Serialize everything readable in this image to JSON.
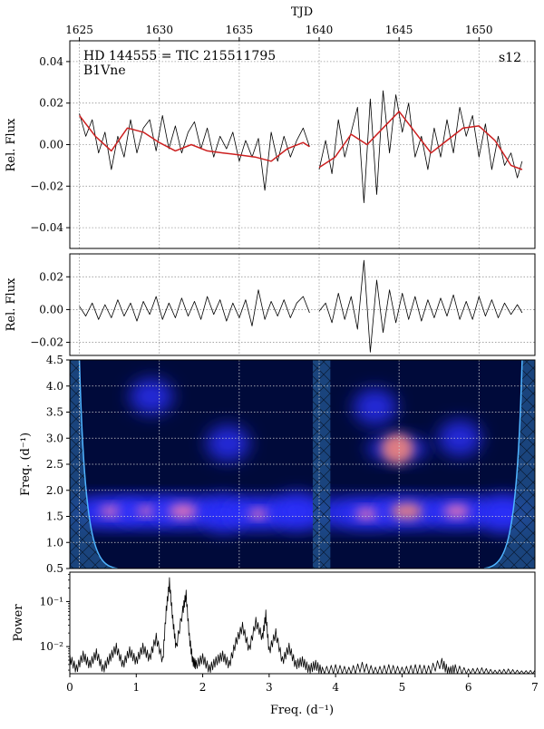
{
  "chart_data": [
    {
      "panel": "light-curve",
      "type": "line",
      "top_axis_label": "TJD",
      "top_ticks": [
        1625,
        1630,
        1635,
        1640,
        1645,
        1650
      ],
      "top_tick_labels": [
        "1625",
        "1630",
        "1635",
        "1640",
        "1645",
        "1650"
      ],
      "xlim": [
        1624.4,
        1653.5
      ],
      "ylabel": "Rel. Flux",
      "ylim": [
        -0.05,
        0.05
      ],
      "yticks": [
        -0.04,
        -0.02,
        0.0,
        0.02,
        0.04
      ],
      "ytick_labels": [
        "−0.04",
        "−0.02",
        "0.00",
        "0.02",
        "0.04"
      ],
      "title_line1": "HD 144555 = TIC 215511795",
      "title_line2": "B1Vne",
      "sector_label": "s12",
      "grid": true,
      "series": [
        {
          "role": "raw",
          "color": "#000000",
          "x": [
            1625.0,
            1625.4,
            1625.8,
            1626.2,
            1626.6,
            1627.0,
            1627.4,
            1627.8,
            1628.2,
            1628.6,
            1629.0,
            1629.4,
            1629.8,
            1630.2,
            1630.6,
            1631.0,
            1631.4,
            1631.8,
            1632.2,
            1632.6,
            1633.0,
            1633.4,
            1633.8,
            1634.2,
            1634.6,
            1635.0,
            1635.4,
            1635.8,
            1636.2,
            1636.6,
            1637.0,
            1637.4,
            1637.8,
            1638.2,
            1638.6,
            1639.0,
            1639.4,
            1640.0,
            1640.4,
            1640.8,
            1641.2,
            1641.6,
            1642.0,
            1642.4,
            1642.8,
            1643.2,
            1643.6,
            1644.0,
            1644.4,
            1644.8,
            1645.2,
            1645.6,
            1646.0,
            1646.4,
            1646.8,
            1647.2,
            1647.6,
            1648.0,
            1648.4,
            1648.8,
            1649.2,
            1649.6,
            1650.0,
            1650.4,
            1650.8,
            1651.2,
            1651.6,
            1652.0,
            1652.4,
            1652.7
          ],
          "y": [
            0.015,
            0.004,
            0.012,
            -0.004,
            0.006,
            -0.012,
            0.004,
            -0.006,
            0.012,
            -0.004,
            0.008,
            0.012,
            -0.003,
            0.014,
            -0.002,
            0.009,
            -0.004,
            0.006,
            0.011,
            -0.002,
            0.008,
            -0.006,
            0.004,
            -0.002,
            0.006,
            -0.008,
            0.002,
            -0.006,
            0.003,
            -0.022,
            0.006,
            -0.008,
            0.004,
            -0.006,
            0.002,
            0.008,
            -0.001,
            -0.012,
            0.002,
            -0.014,
            0.012,
            -0.006,
            0.006,
            0.018,
            -0.028,
            0.022,
            -0.024,
            0.026,
            -0.004,
            0.024,
            0.006,
            0.02,
            -0.006,
            0.004,
            -0.012,
            0.008,
            -0.006,
            0.012,
            -0.004,
            0.018,
            0.004,
            0.014,
            -0.006,
            0.01,
            -0.012,
            0.004,
            -0.01,
            -0.004,
            -0.016,
            -0.008
          ]
        },
        {
          "role": "smoothed",
          "color": "#cc1f1f",
          "x": [
            1625.0,
            1626.0,
            1627.0,
            1628.0,
            1629.0,
            1630.0,
            1631.0,
            1632.0,
            1633.0,
            1634.0,
            1635.0,
            1636.0,
            1637.0,
            1638.0,
            1639.0,
            1639.4,
            1640.0,
            1641.0,
            1642.0,
            1643.0,
            1644.0,
            1645.0,
            1646.0,
            1647.0,
            1648.0,
            1649.0,
            1650.0,
            1651.0,
            1652.0,
            1652.7
          ],
          "y": [
            0.014,
            0.004,
            -0.003,
            0.008,
            0.006,
            0.001,
            -0.003,
            0.0,
            -0.003,
            -0.004,
            -0.005,
            -0.006,
            -0.008,
            -0.002,
            0.001,
            -0.001,
            -0.011,
            -0.006,
            0.005,
            0.0,
            0.008,
            0.016,
            0.006,
            -0.004,
            0.002,
            0.008,
            0.009,
            0.002,
            -0.01,
            -0.012
          ]
        }
      ]
    },
    {
      "panel": "residual",
      "type": "line",
      "ylabel": "Rel. Flux",
      "xlim": [
        1624.4,
        1653.5
      ],
      "ylim": [
        -0.028,
        0.034
      ],
      "yticks": [
        -0.02,
        0.0,
        0.02
      ],
      "ytick_labels": [
        "−0.02",
        "0.00",
        "0.02"
      ],
      "grid": true,
      "series": [
        {
          "role": "residual",
          "color": "#000000",
          "x": [
            1625.0,
            1625.4,
            1625.8,
            1626.2,
            1626.6,
            1627.0,
            1627.4,
            1627.8,
            1628.2,
            1628.6,
            1629.0,
            1629.4,
            1629.8,
            1630.2,
            1630.6,
            1631.0,
            1631.4,
            1631.8,
            1632.2,
            1632.6,
            1633.0,
            1633.4,
            1633.8,
            1634.2,
            1634.6,
            1635.0,
            1635.4,
            1635.8,
            1636.2,
            1636.6,
            1637.0,
            1637.4,
            1637.8,
            1638.2,
            1638.6,
            1639.0,
            1639.4,
            1640.0,
            1640.4,
            1640.8,
            1641.2,
            1641.6,
            1642.0,
            1642.4,
            1642.8,
            1643.2,
            1643.6,
            1644.0,
            1644.4,
            1644.8,
            1645.2,
            1645.6,
            1646.0,
            1646.4,
            1646.8,
            1647.2,
            1647.6,
            1648.0,
            1648.4,
            1648.8,
            1649.2,
            1649.6,
            1650.0,
            1650.4,
            1650.8,
            1651.2,
            1651.6,
            1652.0,
            1652.4,
            1652.7
          ],
          "y": [
            0.002,
            -0.004,
            0.004,
            -0.006,
            0.003,
            -0.005,
            0.006,
            -0.004,
            0.004,
            -0.007,
            0.005,
            -0.003,
            0.008,
            -0.006,
            0.004,
            -0.005,
            0.007,
            -0.004,
            0.005,
            -0.006,
            0.008,
            -0.003,
            0.006,
            -0.007,
            0.004,
            -0.005,
            0.006,
            -0.01,
            0.012,
            -0.006,
            0.005,
            -0.004,
            0.006,
            -0.005,
            0.004,
            0.008,
            -0.002,
            -0.001,
            0.004,
            -0.008,
            0.01,
            -0.006,
            0.008,
            -0.012,
            0.03,
            -0.026,
            0.018,
            -0.014,
            0.012,
            -0.008,
            0.01,
            -0.006,
            0.008,
            -0.007,
            0.006,
            -0.005,
            0.007,
            -0.004,
            0.009,
            -0.006,
            0.005,
            -0.006,
            0.008,
            -0.004,
            0.006,
            -0.005,
            0.004,
            -0.003,
            0.003,
            -0.002
          ]
        }
      ]
    },
    {
      "panel": "wavelet",
      "type": "heatmap",
      "ylabel": "Freq. (d⁻¹)",
      "xlim": [
        1624.4,
        1653.5
      ],
      "ylim": [
        0.5,
        4.5
      ],
      "yticks": [
        0.5,
        1.0,
        1.5,
        2.0,
        2.5,
        3.0,
        3.5,
        4.0,
        4.5
      ],
      "ytick_labels": [
        "0.5",
        "1.0",
        "1.5",
        "2.0",
        "2.5",
        "3.0",
        "3.5",
        "4.0",
        "4.5"
      ],
      "grid": true,
      "gap": [
        1639.6,
        1640.7
      ],
      "colors": {
        "background": "#000a3a",
        "band": "#2a2fff",
        "hot": "#ff7fb0",
        "peak": "#ff8c78"
      },
      "power_spots": [
        {
          "t": 1627.0,
          "f": 1.6,
          "power": 0.7
        },
        {
          "t": 1629.2,
          "f": 1.6,
          "power": 0.6
        },
        {
          "t": 1631.5,
          "f": 1.6,
          "power": 0.9
        },
        {
          "t": 1634.0,
          "f": 1.55,
          "power": 0.5
        },
        {
          "t": 1636.2,
          "f": 1.55,
          "power": 0.6
        },
        {
          "t": 1638.6,
          "f": 1.6,
          "power": 0.5
        },
        {
          "t": 1643.0,
          "f": 1.55,
          "power": 0.7
        },
        {
          "t": 1645.5,
          "f": 1.6,
          "power": 1.0
        },
        {
          "t": 1648.6,
          "f": 1.6,
          "power": 0.8
        },
        {
          "t": 1651.5,
          "f": 1.55,
          "power": 0.5
        },
        {
          "t": 1644.9,
          "f": 2.8,
          "power": 1.0
        },
        {
          "t": 1643.5,
          "f": 3.6,
          "power": 0.45
        },
        {
          "t": 1634.3,
          "f": 2.9,
          "power": 0.45
        },
        {
          "t": 1629.5,
          "f": 3.8,
          "power": 0.35
        },
        {
          "t": 1648.8,
          "f": 3.0,
          "power": 0.35
        }
      ]
    },
    {
      "panel": "periodogram",
      "type": "line",
      "xlabel": "Freq. (d⁻¹)",
      "ylabel": "Power",
      "xlim": [
        0,
        7
      ],
      "xticks": [
        0,
        1,
        2,
        3,
        4,
        5,
        6,
        7
      ],
      "xtick_labels": [
        "0",
        "1",
        "2",
        "3",
        "4",
        "5",
        "6",
        "7"
      ],
      "yscale": "log",
      "ylim": [
        0.0025,
        0.45
      ],
      "ytick_values": [
        0.01,
        0.1
      ],
      "ytick_labels": [
        "10⁻²",
        "10⁻¹"
      ],
      "series": [
        {
          "role": "power",
          "color": "#000000",
          "x": [
            0.0,
            0.1,
            0.2,
            0.3,
            0.4,
            0.5,
            0.6,
            0.7,
            0.8,
            0.9,
            1.0,
            1.1,
            1.2,
            1.3,
            1.4,
            1.45,
            1.5,
            1.55,
            1.6,
            1.7,
            1.75,
            1.8,
            1.85,
            1.9,
            2.0,
            2.1,
            2.2,
            2.3,
            2.4,
            2.5,
            2.6,
            2.7,
            2.8,
            2.9,
            2.95,
            3.0,
            3.1,
            3.2,
            3.3,
            3.4,
            3.5,
            3.6,
            3.7,
            3.8,
            4.0,
            4.2,
            4.4,
            4.6,
            4.8,
            5.0,
            5.2,
            5.4,
            5.6,
            5.7,
            5.8,
            6.0,
            6.2,
            6.4,
            6.6,
            6.8,
            7.0
          ],
          "y": [
            0.007,
            0.004,
            0.008,
            0.005,
            0.009,
            0.004,
            0.007,
            0.012,
            0.005,
            0.01,
            0.006,
            0.012,
            0.007,
            0.02,
            0.006,
            0.08,
            0.34,
            0.05,
            0.012,
            0.08,
            0.18,
            0.02,
            0.006,
            0.005,
            0.007,
            0.004,
            0.006,
            0.008,
            0.005,
            0.016,
            0.035,
            0.011,
            0.045,
            0.02,
            0.065,
            0.01,
            0.025,
            0.006,
            0.012,
            0.005,
            0.006,
            0.004,
            0.005,
            0.0035,
            0.004,
            0.0035,
            0.0045,
            0.0035,
            0.004,
            0.0035,
            0.004,
            0.0038,
            0.0055,
            0.0035,
            0.004,
            0.0032,
            0.0034,
            0.003,
            0.0032,
            0.0029,
            0.003
          ]
        }
      ]
    }
  ]
}
